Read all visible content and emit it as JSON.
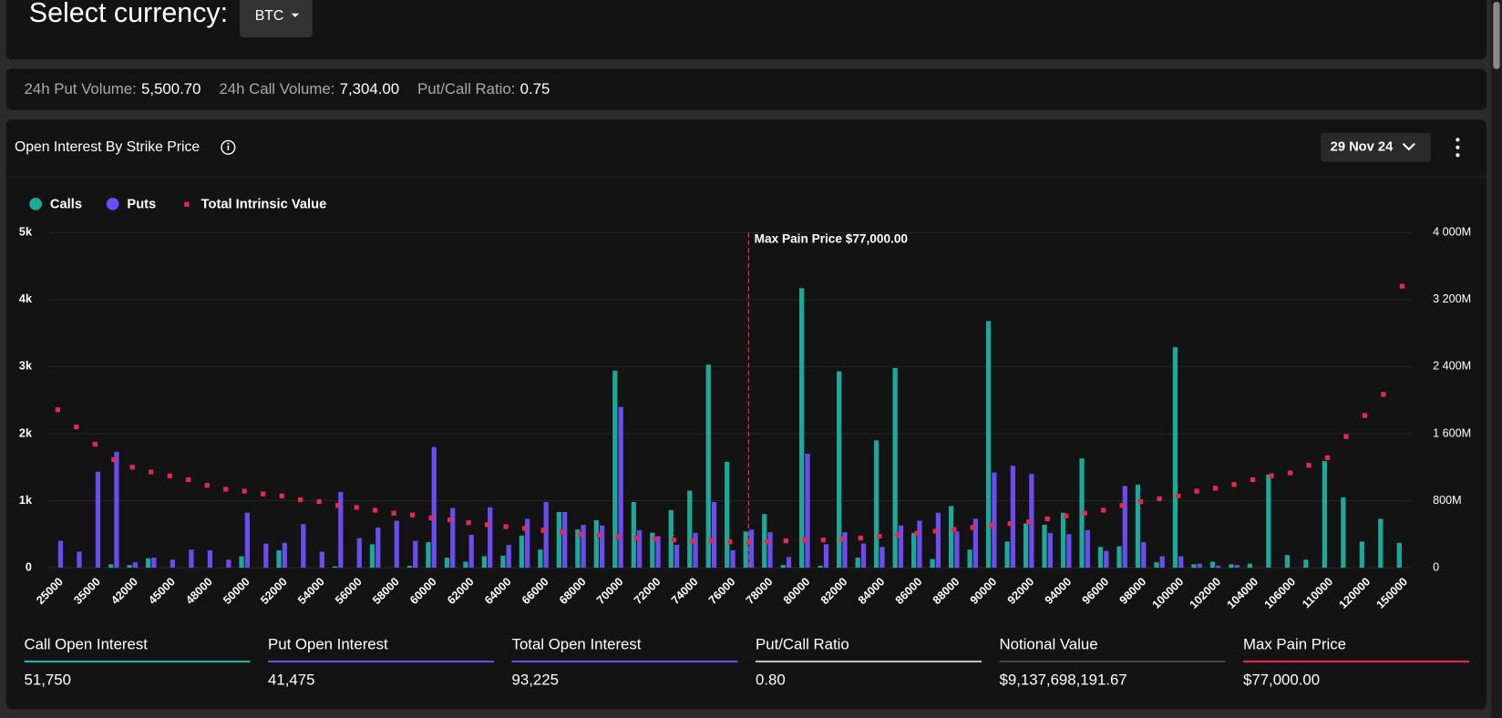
{
  "header": {
    "label": "Select currency:",
    "currency": "BTC"
  },
  "stats": [
    {
      "label": "24h Put Volume:",
      "value": "5,500.70"
    },
    {
      "label": "24h Call Volume:",
      "value": "7,304.00"
    },
    {
      "label": "Put/Call Ratio:",
      "value": "0.75"
    }
  ],
  "chart_data": {
    "type": "bar",
    "title": "Open Interest By Strike Price",
    "date": "29 Nov 24",
    "categories": [
      "25000",
      null,
      "35000",
      null,
      "42000",
      null,
      "45000",
      null,
      "48000",
      null,
      "50000",
      null,
      "52000",
      null,
      "54000",
      null,
      "56000",
      null,
      "58000",
      null,
      "60000",
      null,
      "62000",
      null,
      "64000",
      null,
      "66000",
      null,
      "68000",
      null,
      "70000",
      null,
      "72000",
      null,
      "74000",
      null,
      "76000",
      null,
      "78000",
      null,
      "80000",
      null,
      "82000",
      null,
      "84000",
      null,
      "86000",
      null,
      "88000",
      null,
      "90000",
      null,
      "92000",
      null,
      "94000",
      null,
      "96000",
      null,
      "98000",
      null,
      "100000",
      null,
      "102000",
      null,
      "104000",
      null,
      "106000",
      null,
      "110000",
      null,
      "120000",
      null,
      "150000"
    ],
    "series": [
      {
        "name": "Calls",
        "color": "#1ea899",
        "type": "bar",
        "values": [
          0,
          0,
          0,
          50,
          40,
          140,
          0,
          0,
          0,
          0,
          170,
          0,
          260,
          0,
          0,
          20,
          0,
          350,
          0,
          30,
          380,
          150,
          90,
          170,
          180,
          480,
          270,
          830,
          570,
          710,
          2940,
          980,
          520,
          860,
          1150,
          3030,
          1580,
          540,
          800,
          40,
          4170,
          30,
          2930,
          150,
          1900,
          2980,
          520,
          130,
          920,
          270,
          3680,
          390,
          660,
          640,
          820,
          1630,
          310,
          320,
          1240,
          80,
          3290,
          50,
          90,
          50,
          60,
          1390,
          190,
          120,
          1590,
          1050,
          390,
          730,
          370
        ]
      },
      {
        "name": "Puts",
        "color": "#6b4cf0",
        "type": "bar",
        "values": [
          400,
          240,
          1430,
          1730,
          80,
          150,
          120,
          270,
          260,
          120,
          820,
          360,
          370,
          650,
          240,
          1130,
          440,
          600,
          700,
          400,
          1800,
          890,
          490,
          900,
          340,
          730,
          980,
          830,
          640,
          630,
          2400,
          560,
          470,
          340,
          520,
          980,
          260,
          570,
          530,
          160,
          1700,
          350,
          530,
          360,
          310,
          630,
          700,
          820,
          540,
          730,
          1420,
          1520,
          1400,
          520,
          500,
          560,
          250,
          1220,
          380,
          170,
          170,
          60,
          30,
          40,
          0,
          0,
          0,
          0,
          0,
          0,
          0,
          0,
          0
        ]
      },
      {
        "name": "Total Intrinsic Value",
        "color": "#e8294f",
        "type": "scatter",
        "axis": "y2",
        "values": [
          1886,
          1680,
          1474,
          1291,
          1200,
          1143,
          1097,
          1051,
          983,
          937,
          914,
          880,
          857,
          811,
          789,
          743,
          720,
          686,
          651,
          629,
          594,
          571,
          537,
          514,
          491,
          469,
          446,
          423,
          400,
          389,
          366,
          354,
          343,
          331,
          320,
          320,
          309,
          309,
          309,
          320,
          331,
          331,
          343,
          354,
          377,
          389,
          411,
          434,
          457,
          480,
          503,
          526,
          549,
          583,
          617,
          651,
          686,
          743,
          789,
          823,
          857,
          914,
          949,
          994,
          1051,
          1097,
          1131,
          1223,
          1314,
          1566,
          1817,
          2069,
          3360
        ]
      }
    ],
    "ylim": [
      0,
      5000
    ],
    "yticks": [
      0,
      {
        "value": 1000,
        "label": "1k"
      },
      {
        "value": 2000,
        "label": "2k"
      },
      {
        "value": 3000,
        "label": "3k"
      },
      {
        "value": 4000,
        "label": "4k"
      },
      {
        "value": 5000,
        "label": "5k"
      }
    ],
    "y2lim": [
      0,
      4000
    ],
    "y2ticks": [
      0,
      {
        "value": 800,
        "label": "800M"
      },
      {
        "value": 1600,
        "label": "1 600M"
      },
      {
        "value": 2400,
        "label": "2 400M"
      },
      {
        "value": 3200,
        "label": "3 200M"
      },
      {
        "value": 4000,
        "label": "4 000M"
      }
    ],
    "grid": true,
    "legend": "top-left",
    "annotation": {
      "text": "Max Pain Price $77,000.00",
      "x": 77000
    }
  },
  "summary": [
    {
      "label": "Call Open Interest",
      "value": "51,750",
      "color": "#26b3a6"
    },
    {
      "label": "Put Open Interest",
      "value": "41,475",
      "color": "#6b4cf0"
    },
    {
      "label": "Total Open Interest",
      "value": "93,225",
      "color": "#6b4cf0"
    },
    {
      "label": "Put/Call Ratio",
      "value": "0.80",
      "color": "#bdbdbd"
    },
    {
      "label": "Notional Value",
      "value": "$9,137,698,191.67",
      "color": "#444444"
    },
    {
      "label": "Max Pain Price",
      "value": "$77,000.00",
      "color": "#e8294f"
    }
  ]
}
